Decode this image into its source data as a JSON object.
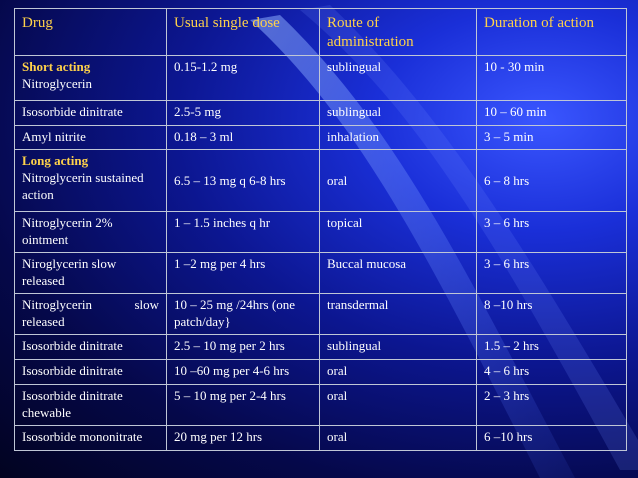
{
  "table": {
    "headers": [
      "Drug",
      "Usual single dose",
      "Route of administration",
      "Duration of action"
    ],
    "groups": {
      "short_acting": "Short acting",
      "long_acting": "Long acting"
    },
    "rows": [
      {
        "drug": "Nitroglycerin",
        "dose": "0.15-1.2 mg",
        "route": "sublingual",
        "duration": "10 - 30 min"
      },
      {
        "drug": "Isosorbide dinitrate",
        "dose": "2.5-5 mg",
        "route": "sublingual",
        "duration": "10 – 60 min"
      },
      {
        "drug": "Amyl nitrite",
        "dose": "0.18 – 3 ml",
        "route": "inhalation",
        "duration": "3 – 5 min"
      },
      {
        "drug": "Nitroglycerin sustained action",
        "dose": "6.5 – 13 mg q 6-8 hrs",
        "route": "oral",
        "duration": "6 – 8 hrs"
      },
      {
        "drug": "Nitroglycerin 2% ointment",
        "dose": "1 – 1.5 inches q hr",
        "route": "topical",
        "duration": "3 – 6 hrs"
      },
      {
        "drug": "Niroglycerin slow released",
        "dose": "1 –2 mg per 4 hrs",
        "route": "Buccal mucosa",
        "duration": "3 – 6 hrs"
      },
      {
        "drug_word1": "Nitroglycerin",
        "drug_word2": "slow",
        "drug_line2": "released",
        "dose": "10 – 25 mg /24hrs (one patch/day}",
        "route": "transdermal",
        "duration": "8 –10 hrs"
      },
      {
        "drug": "Isosorbide dinitrate",
        "dose": "2.5 – 10 mg per 2 hrs",
        "route": "sublingual",
        "duration": "1.5 – 2 hrs"
      },
      {
        "drug": "Isosorbide dinitrate",
        "dose": "10 –60 mg per 4-6 hrs",
        "route": "oral",
        "duration": "4 – 6 hrs"
      },
      {
        "drug": "Isosorbide dinitrate chewable",
        "dose": "5 – 10 mg per 2-4 hrs",
        "route": "oral",
        "duration": "2 – 3 hrs"
      },
      {
        "drug": "Isosorbide mononitrate",
        "dose": "20 mg per 12 hrs",
        "route": "oral",
        "duration": "6 –10 hrs"
      }
    ]
  },
  "colors": {
    "header_text": "#ffd24a",
    "body_text": "#ffffff",
    "highlight_red": "#ff2a2a",
    "highlight_yellow": "#ffd24a",
    "background": "#0c1690"
  }
}
